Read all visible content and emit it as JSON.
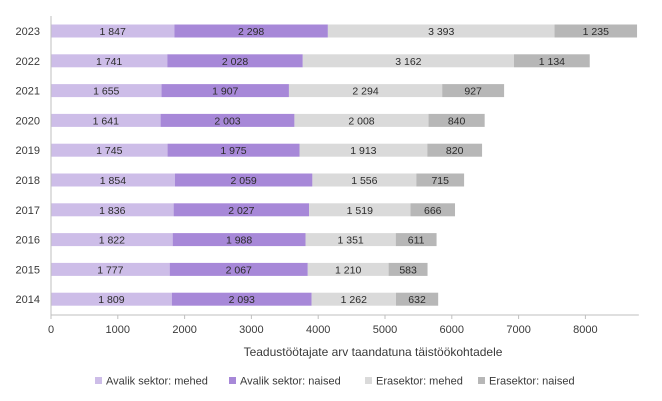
{
  "chart_data": {
    "type": "bar",
    "orientation": "horizontal",
    "stacked": true,
    "categories": [
      "2023",
      "2022",
      "2021",
      "2020",
      "2019",
      "2018",
      "2017",
      "2016",
      "2015",
      "2014"
    ],
    "series": [
      {
        "name": "Avalik sektor: mehed",
        "color": "#cdbde8",
        "values": [
          1847,
          1741,
          1655,
          1641,
          1745,
          1854,
          1836,
          1822,
          1777,
          1809
        ]
      },
      {
        "name": "Avalik sektor: naised",
        "color": "#a788d8",
        "values": [
          2298,
          2028,
          1907,
          2003,
          1975,
          2059,
          2027,
          1988,
          2067,
          2093
        ]
      },
      {
        "name": "Erasektor: mehed",
        "color": "#dadada",
        "values": [
          3393,
          3162,
          2294,
          2008,
          1913,
          1556,
          1519,
          1351,
          1210,
          1262
        ]
      },
      {
        "name": "Erasektor: naised",
        "color": "#b7b7b7",
        "values": [
          1235,
          1134,
          927,
          840,
          820,
          715,
          666,
          611,
          583,
          632
        ]
      }
    ],
    "data_labels": [
      [
        "1 847",
        "1 741",
        "1 655",
        "1 641",
        "1 745",
        "1 854",
        "1 836",
        "1 822",
        "1 777",
        "1 809"
      ],
      [
        "2 298",
        "2 028",
        "1 907",
        "2 003",
        "1 975",
        "2 059",
        "2 027",
        "1 988",
        "2 067",
        "2 093"
      ],
      [
        "3 393",
        "3 162",
        "2 294",
        "2 008",
        "1 913",
        "1 556",
        "1 519",
        "1 351",
        "1 210",
        "1 262"
      ],
      [
        "1 235",
        "1 134",
        "927",
        "840",
        "820",
        "715",
        "666",
        "611",
        "583",
        "632"
      ]
    ],
    "xlabel": "Teadustöötajate arv taandatuna täistöökohtadele",
    "ylabel": "",
    "xlim": [
      0,
      8800
    ],
    "xticks": [
      0,
      1000,
      2000,
      3000,
      4000,
      5000,
      6000,
      7000,
      8000
    ],
    "xtick_labels": [
      "0",
      "1000",
      "2000",
      "3000",
      "4000",
      "5000",
      "6000",
      "7000",
      "8000"
    ],
    "grid": false,
    "legend_position": "bottom"
  }
}
